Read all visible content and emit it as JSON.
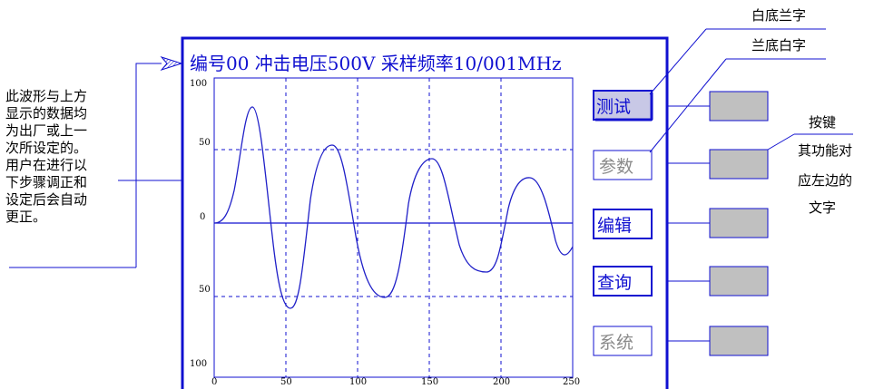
{
  "screen": {
    "title": "编号00 冲击电压500V 采样频率10/001MHz",
    "y_tick_labels": [
      "100",
      "50",
      "0",
      "50",
      "100"
    ],
    "x_tick_labels": [
      "0",
      "50",
      "100",
      "150",
      "200",
      "250"
    ],
    "menu_buttons": [
      {
        "label": "测试",
        "state": "selected"
      },
      {
        "label": "参数",
        "state": "normal"
      },
      {
        "label": "编辑",
        "state": "emphasized"
      },
      {
        "label": "查询",
        "state": "emphasized"
      },
      {
        "label": "系统",
        "state": "normal"
      }
    ]
  },
  "annotations": {
    "left_note": [
      "此波形与上方",
      "显示的数据均",
      "为出厂或上一",
      "次所设定的。",
      "用户在进行以",
      "下步骤调正和",
      "设定后会自动",
      "更正。"
    ],
    "selected_style": "白底兰字",
    "normal_style": "兰底白字",
    "key_note": [
      "按键",
      "其功能对",
      "应左边的",
      "文字"
    ]
  },
  "colors": {
    "screen_blue": "#1010d0",
    "wave_blue": "#2020c8",
    "key_gray": "#c0c0c0",
    "selected_bg": "#c8c8e6",
    "text_black": "#000000"
  },
  "icons": {
    "pointer_arrow": "hatched-arrow-icon"
  }
}
